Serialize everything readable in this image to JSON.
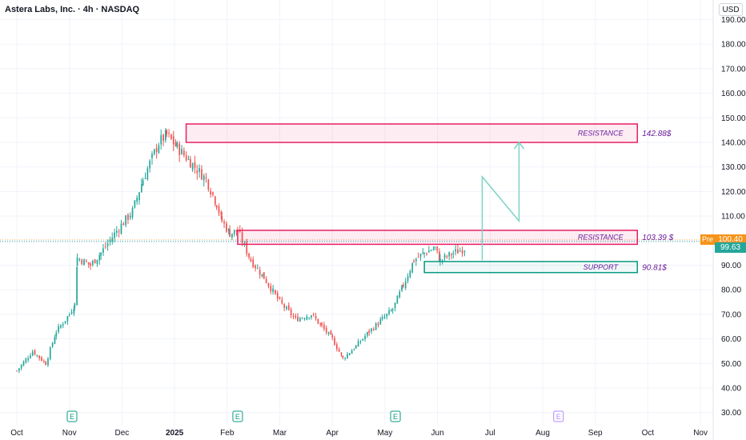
{
  "header": {
    "title": "Astera Labs, Inc. · 4h · NASDAQ",
    "currency": "USD"
  },
  "price": {
    "pre_label": "Pre",
    "pre_value": "100.40",
    "last_value": "99.63"
  },
  "colors": {
    "up": "#26a69a",
    "down": "#ef5350",
    "zone": "#e91e63",
    "support": "#089981",
    "path": "#7ed3c4",
    "pre": "#f7931a",
    "label": "#6a1b9a"
  },
  "chart_data": {
    "type": "candlestick",
    "ylim": [
      27,
      195
    ],
    "y_ticks": [
      "190.00",
      "180.00",
      "170.00",
      "160.00",
      "150.00",
      "140.00",
      "130.00",
      "120.00",
      "110.00",
      "100.00",
      "90.00",
      "80.00",
      "70.00",
      "60.00",
      "50.00",
      "40.00",
      "30.00"
    ],
    "x_ticks": [
      "Oct",
      "Nov",
      "Dec",
      "2025",
      "Feb",
      "Mar",
      "Apr",
      "May",
      "Jun",
      "Jul",
      "Aug",
      "Sep",
      "Oct",
      "Nov"
    ],
    "zones": [
      {
        "type": "resistance",
        "label": "RESISTANCE",
        "price_label": "142.88$",
        "low": 140,
        "high": 147.5
      },
      {
        "type": "resistance",
        "label": "RESISTANCE",
        "price_label": "103.39 $",
        "low": 98.5,
        "high": 104.2
      },
      {
        "type": "support",
        "label": "SUPPORT",
        "price_label": "90.81$",
        "low": 87,
        "high": 91.5
      }
    ],
    "projection": [
      {
        "month": 8.85,
        "price": 92
      },
      {
        "month": 8.85,
        "price": 126
      },
      {
        "month": 9.55,
        "price": 108
      },
      {
        "month": 9.55,
        "price": 140
      }
    ],
    "earnings_markers": [
      {
        "label": "E",
        "month": 1.05,
        "confirmed": true
      },
      {
        "label": "E",
        "month": 4.2,
        "confirmed": true
      },
      {
        "label": "E",
        "month": 7.2,
        "confirmed": true
      },
      {
        "label": "E",
        "month": 10.3,
        "confirmed": false
      }
    ],
    "series_anchors": [
      [
        0.0,
        47
      ],
      [
        0.3,
        55
      ],
      [
        0.55,
        50
      ],
      [
        0.75,
        63
      ],
      [
        1.0,
        70
      ],
      [
        1.1,
        74
      ],
      [
        1.15,
        93
      ],
      [
        1.4,
        90
      ],
      [
        1.6,
        95
      ],
      [
        1.9,
        104
      ],
      [
        2.2,
        112
      ],
      [
        2.4,
        125
      ],
      [
        2.7,
        140
      ],
      [
        2.85,
        143
      ],
      [
        3.05,
        138
      ],
      [
        3.3,
        132
      ],
      [
        3.6,
        125
      ],
      [
        3.8,
        115
      ],
      [
        3.9,
        108
      ],
      [
        4.05,
        103
      ],
      [
        4.2,
        104
      ],
      [
        4.45,
        92
      ],
      [
        4.7,
        85
      ],
      [
        5.0,
        75
      ],
      [
        5.3,
        68
      ],
      [
        5.6,
        70
      ],
      [
        5.8,
        65
      ],
      [
        6.0,
        60
      ],
      [
        6.2,
        52
      ],
      [
        6.45,
        57
      ],
      [
        6.7,
        63
      ],
      [
        6.95,
        68
      ],
      [
        7.15,
        72
      ],
      [
        7.35,
        82
      ],
      [
        7.55,
        92
      ],
      [
        7.75,
        95
      ],
      [
        7.95,
        97
      ],
      [
        8.05,
        92
      ],
      [
        8.3,
        95
      ],
      [
        8.55,
        97
      ]
    ]
  }
}
